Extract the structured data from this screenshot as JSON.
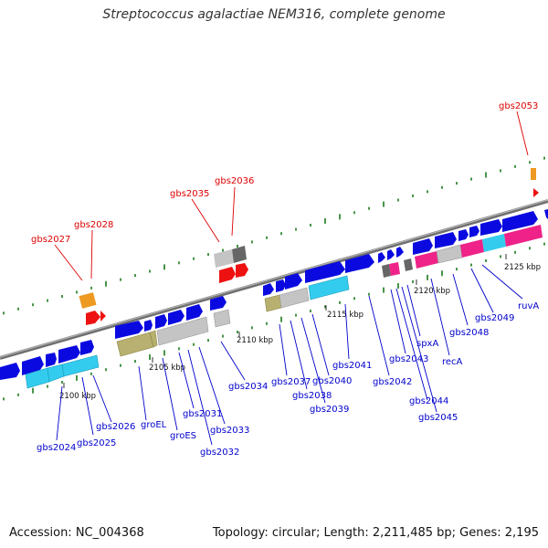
{
  "title": "Streptococcus agalactiae NEM316, complete genome",
  "footer": {
    "accession": "Accession: NC_004368",
    "topology": "Topology: circular; Length: 2,211,485 bp; Genes: 2,195"
  },
  "colors": {
    "backbone": "#888888",
    "forward_gene": "#0a0ae0",
    "rna_label": "#dd0000",
    "gene_label": "#0000cc",
    "gc_dots": "#1a7a1a",
    "hit_cyan": "#33ccee",
    "hit_olive": "#b8b070",
    "hit_grey": "#c4c4c4",
    "hit_pink": "#ee2288",
    "hit_orange": "#ee9922",
    "hit_red": "#ee1111"
  },
  "ticks": [
    "2100 kbp",
    "2105 kbp",
    "2110 kbp",
    "2115 kbp",
    "2120 kbp",
    "2125 kbp"
  ],
  "red_labels": [
    "gbs2027",
    "gbs2028",
    "gbs2035",
    "gbs2036",
    "gbs2053"
  ],
  "blue_labels": [
    "gbs2024",
    "gbs2025",
    "gbs2026",
    "groEL",
    "groES",
    "gbs2031",
    "gbs2032",
    "gbs2033",
    "gbs2034",
    "gbs2037",
    "gbs2038",
    "gbs2039",
    "gbs2040",
    "gbs2041",
    "gbs2042",
    "gbs2043",
    "spxA",
    "gbs2044",
    "gbs2045",
    "recA",
    "gbs2048",
    "gbs2049",
    "ruvA"
  ]
}
